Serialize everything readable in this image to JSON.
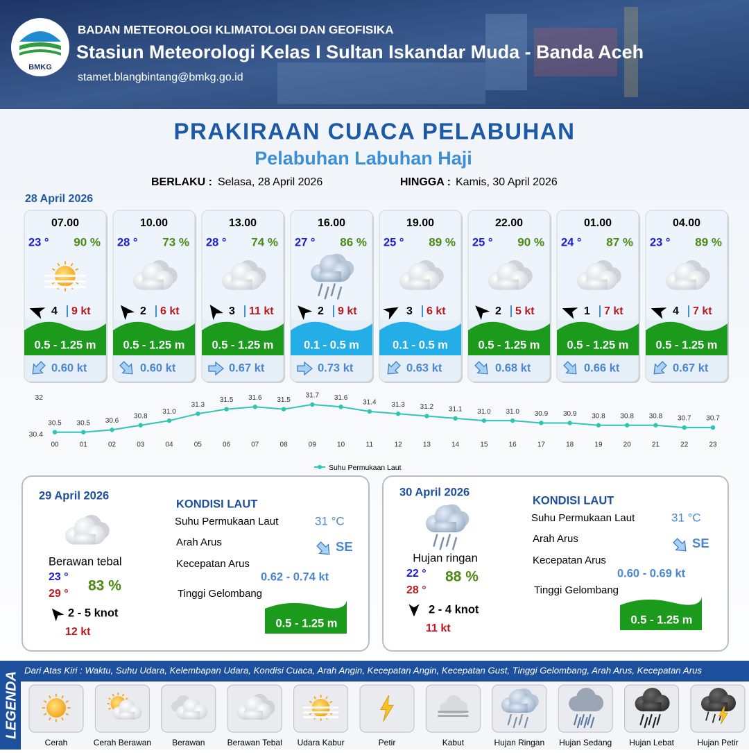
{
  "header": {
    "logo": "BMKG",
    "agency": "BADAN METEOROLOGI KLIMATOLOGI DAN GEOFISIKA",
    "station": "Stasiun Meteorologi Kelas I Sultan Iskandar Muda - Banda Aceh",
    "email": "stamet.blangbintang@bmkg.go.id"
  },
  "title": "PRAKIRAAN CUACA PELABUHAN",
  "subtitle": "Pelabuhan Labuhan Haji",
  "validity": {
    "from_label": "BERLAKU :",
    "from": "Selasa, 28 April 2026",
    "to_label": "HINGGA :",
    "to": "Kamis, 30 April 2026"
  },
  "today": {
    "date": "28 April 2026",
    "forecasts": [
      {
        "time": "07.00",
        "temp": "23 °",
        "humidity": "90 %",
        "wind": "4",
        "gust": "9 kt",
        "wave": "0.5 - 1.25 m",
        "current": "0.60 kt"
      },
      {
        "time": "10.00",
        "temp": "28 °",
        "humidity": "73 %",
        "wind": "2",
        "gust": "6 kt",
        "wave": "0.5 - 1.25 m",
        "current": "0.60 kt"
      },
      {
        "time": "13.00",
        "temp": "28 °",
        "humidity": "74 %",
        "wind": "3",
        "gust": "11 kt",
        "wave": "0.5 - 1.25 m",
        "current": "0.67 kt"
      },
      {
        "time": "16.00",
        "temp": "27 °",
        "humidity": "86 %",
        "wind": "2",
        "gust": "9 kt",
        "wave": "0.1 - 0.5 m",
        "current": "0.73 kt"
      },
      {
        "time": "19.00",
        "temp": "25 °",
        "humidity": "89 %",
        "wind": "3",
        "gust": "6 kt",
        "wave": "0.1 - 0.5 m",
        "current": "0.63 kt"
      },
      {
        "time": "22.00",
        "temp": "25 °",
        "humidity": "90 %",
        "wind": "2",
        "gust": "5 kt",
        "wave": "0.5 - 1.25 m",
        "current": "0.68 kt"
      },
      {
        "time": "01.00",
        "temp": "24 °",
        "humidity": "87 %",
        "wind": "1",
        "gust": "7 kt",
        "wave": "0.5 - 1.25 m",
        "current": "0.66 kt"
      },
      {
        "time": "04.00",
        "temp": "23 °",
        "humidity": "89 %",
        "wind": "4",
        "gust": "7 kt",
        "wave": "0.5 - 1.25 m",
        "current": "0.67 kt"
      }
    ]
  },
  "chart_data": {
    "type": "line",
    "categories": [
      "00",
      "01",
      "02",
      "03",
      "04",
      "05",
      "06",
      "07",
      "08",
      "09",
      "10",
      "11",
      "12",
      "13",
      "14",
      "15",
      "16",
      "17",
      "18",
      "19",
      "20",
      "21",
      "22",
      "23"
    ],
    "series": [
      {
        "name": "Suhu Permukaan Laut",
        "color": "#2ec4b6",
        "values": [
          30.5,
          30.5,
          30.6,
          30.8,
          31.0,
          31.3,
          31.5,
          31.6,
          31.5,
          31.7,
          31.6,
          31.4,
          31.3,
          31.2,
          31.1,
          31.0,
          31.0,
          30.9,
          30.9,
          30.8,
          30.8,
          30.8,
          30.7,
          30.7
        ],
        "value_labels": [
          "30.5",
          "30.5",
          "30.6",
          "30.8",
          "31.0",
          "31.3",
          "31.5",
          "31.6",
          "31.5",
          "31.7",
          "31.6",
          "31.4",
          "31.3",
          "31.2",
          "31.1",
          "31.0",
          "31.0",
          "30.9",
          "30.9",
          "30.8",
          "30.8",
          "30.8",
          "30.7",
          "30.7"
        ]
      }
    ],
    "ylim": [
      30.4,
      32
    ],
    "yticks": [
      30.4,
      32
    ],
    "legend": "bottom"
  },
  "days": [
    {
      "date": "29 April 2026",
      "condition": "Berawan tebal",
      "temp_min": "23 °",
      "temp_max": "29 °",
      "humidity": "83 %",
      "wind": "2  - 5 knot",
      "gust": "12 kt",
      "sea": {
        "title": "KONDISI LAUT",
        "sst_label": "Suhu Permukaan Laut",
        "sst": "31 °C",
        "direction_label": "Arah Arus",
        "direction": "SE",
        "speed_label": "Kecepatan Arus",
        "speed": "0.62  - 0.74 kt",
        "wave_label": "Tinggi Gelombang",
        "wave": "0.5 - 1.25 m"
      }
    },
    {
      "date": "30 April 2026",
      "condition": "Hujan ringan",
      "temp_min": "22 °",
      "temp_max": "28 °",
      "humidity": "88 %",
      "wind": "2  - 4 knot",
      "gust": "11 kt",
      "sea": {
        "title": "KONDISI LAUT",
        "sst_label": "Suhu Permukaan Laut",
        "sst": "31 °C",
        "direction_label": "Arah Arus",
        "direction": "SE",
        "speed_label": "Kecepatan Arus",
        "speed": "0.60  - 0.69 kt",
        "wave_label": "Tinggi Gelombang",
        "wave": "0.5 - 1.25 m"
      }
    }
  ],
  "legend": {
    "title": "LEGENDA",
    "description": "Dari Atas Kiri : Waktu, Suhu Udara, Kelembapan Udara, Kondisi Cuaca, Arah Angin, Kecepatan Angin, Kecepatan Gust, Tinggi Gelombang, Arah Arus, Kecepatan Arus",
    "items": [
      "Cerah",
      "Cerah Berawan",
      "Berawan",
      "Berawan Tebal",
      "Udara Kabur",
      "Petir",
      "Kabut",
      "Hujan Ringan",
      "Hujan Sedang",
      "Hujan Lebat",
      "Hujan Petir"
    ]
  }
}
